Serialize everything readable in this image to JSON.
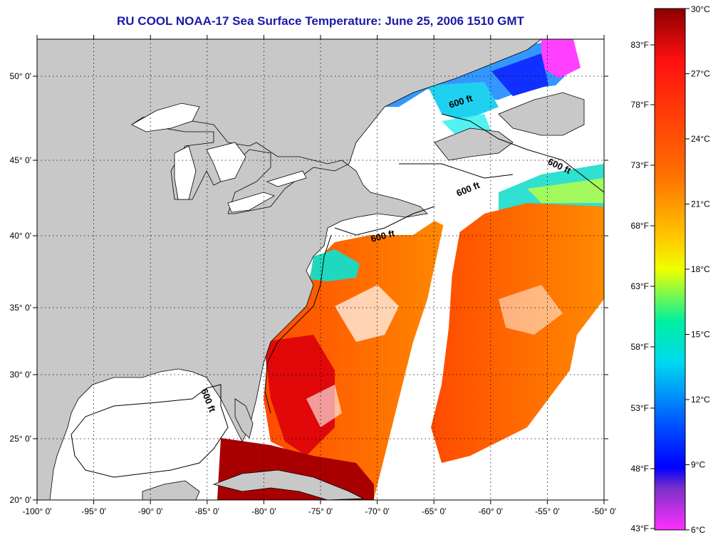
{
  "title": "RU COOL  NOAA-17  Sea Surface Temperature:  June 25, 2006 1510 GMT",
  "colors": {
    "land": "#c8c8c8",
    "water_no_data": "#ffffff",
    "title": "#1a1aa8"
  },
  "axes": {
    "latitude_labels": [
      "50° 0'",
      "45° 0'",
      "40° 0'",
      "35° 0'",
      "30° 0'",
      "25° 0'",
      "20° 0'"
    ],
    "longitude_labels": [
      "-100° 0'",
      "-95° 0'",
      "-90° 0'",
      "-85° 0'",
      "-80° 0'",
      "-75° 0'",
      "-70° 0'",
      "-65° 0'",
      "-60° 0'",
      "-55° 0'",
      "-50° 0'"
    ]
  },
  "contour_label": "600 ft",
  "colorbar": {
    "celsius": [
      "30°C",
      "27°C",
      "24°C",
      "21°C",
      "18°C",
      "15°C",
      "12°C",
      "9°C",
      "6°C"
    ],
    "fahrenheit": [
      "83°F",
      "78°F",
      "73°F",
      "68°F",
      "63°F",
      "58°F",
      "53°F",
      "48°F",
      "43°F"
    ],
    "stops": [
      "#8b0000",
      "#ff1010",
      "#ff6400",
      "#ffc800",
      "#f0ff00",
      "#00f0a0",
      "#00d8f0",
      "#0050ff",
      "#0000ff",
      "#6a2cd0",
      "#ff00ff"
    ]
  }
}
